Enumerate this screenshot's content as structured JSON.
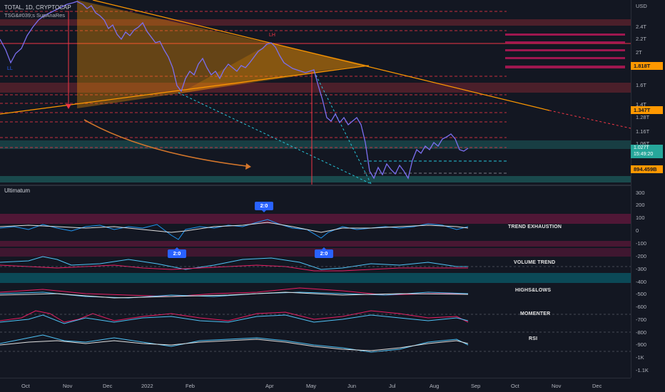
{
  "symbol_line": "TOTAL, 1D, CRYPTOCAP",
  "indicator_line": "TSG&#039;s SupAnaRes",
  "indicator_pane_title": "Ultimatum",
  "currency": "USD",
  "price_axis": [
    "2.4T",
    "2.2T",
    "2T",
    "1.6T",
    "1.4T",
    "1.28T",
    "1.16T",
    "1.06T",
    "1.0T"
  ],
  "badges": {
    "resistance_1": "1.818T",
    "resistance_2": "1.347T",
    "support_1": "894.459B",
    "last_price": "1.027T",
    "countdown": "15:49:20"
  },
  "colors": {
    "resistance_badge": "#ff9800",
    "price_badge": "#26a69a",
    "bearish": "#f23645",
    "bullish": "#2962ff",
    "price_line": "#7b6ff0",
    "trendline": "#ff9800"
  },
  "indicator_axis": [
    "300",
    "200",
    "100",
    "0",
    "-100",
    "-200",
    "-300",
    "-400",
    "-500",
    "-600",
    "-700",
    "-800",
    "-900",
    "-1K",
    "-1.1K"
  ],
  "time_axis": [
    "Oct",
    "Nov",
    "Dec",
    "2022",
    "Feb",
    "Apr",
    "May",
    "Jun",
    "Jul",
    "Aug",
    "Sep",
    "Oct",
    "Nov",
    "Dec"
  ],
  "pane_tags": {
    "trend_exhaustion": "TREND EXHAUSTION",
    "volume_trend": "VOLUME TREND",
    "highs_lows": "HIGHS&LOWS",
    "momenter": "MOMENTER",
    "rsi": "RSI"
  },
  "signals": [
    "2:0",
    "2:0",
    "2:0"
  ],
  "annotations": {
    "lh": "LH",
    "ll": "LL"
  }
}
